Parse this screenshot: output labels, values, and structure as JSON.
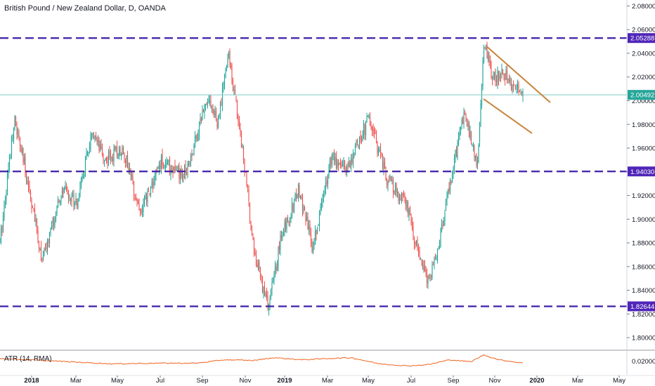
{
  "window": {
    "title": "British Pound / New Zealand Dollar, D, OANDA"
  },
  "colors": {
    "up": "#26a69a",
    "down": "#ef5350",
    "hline": "#3f1fa8",
    "trendline": "#c8843c",
    "price_line": "#80cbc4",
    "atr": "#f0631e",
    "axis_text": "#131722",
    "badge_bg": "#4f25b8",
    "badge_text": "#ffffff",
    "price_badge_bg": "#26a69a"
  },
  "chart_data": [
    {
      "type": "candlestick",
      "title": "British Pound / New Zealand Dollar, D, OANDA",
      "x_tick_labels": [
        "2018",
        "Mar",
        "May",
        "Jul",
        "Sep",
        "Nov",
        "2019",
        "Mar",
        "May",
        "Jul",
        "Sep",
        "Nov",
        "2020",
        "Mar",
        "May"
      ],
      "y_tick_labels": [
        "2.08000",
        "2.06000",
        "2.04000",
        "2.02000",
        "2.00000",
        "1.98000",
        "1.96000",
        "1.94000",
        "1.92000",
        "1.90000",
        "1.88000",
        "1.86000",
        "1.84000",
        "1.82000",
        "1.80000"
      ],
      "ylim": [
        1.79,
        2.085
      ],
      "price_anchors": [
        [
          0,
          1.88
        ],
        [
          20,
          1.985
        ],
        [
          40,
          1.93
        ],
        [
          60,
          1.865
        ],
        [
          90,
          1.925
        ],
        [
          110,
          1.915
        ],
        [
          130,
          1.97
        ],
        [
          150,
          1.95
        ],
        [
          175,
          1.96
        ],
        [
          200,
          1.905
        ],
        [
          230,
          1.95
        ],
        [
          260,
          1.935
        ],
        [
          275,
          1.96
        ],
        [
          295,
          2.005
        ],
        [
          310,
          1.98
        ],
        [
          325,
          2.04
        ],
        [
          345,
          1.96
        ],
        [
          362,
          1.87
        ],
        [
          382,
          1.825
        ],
        [
          400,
          1.885
        ],
        [
          425,
          1.925
        ],
        [
          445,
          1.875
        ],
        [
          470,
          1.95
        ],
        [
          495,
          1.945
        ],
        [
          525,
          1.985
        ],
        [
          550,
          1.935
        ],
        [
          580,
          1.91
        ],
        [
          595,
          1.87
        ],
        [
          610,
          1.845
        ],
        [
          625,
          1.88
        ],
        [
          640,
          1.93
        ],
        [
          660,
          1.99
        ],
        [
          680,
          1.945
        ],
        [
          688,
          2.05
        ],
        [
          700,
          2.02
        ],
        [
          715,
          2.025
        ],
        [
          730,
          2.01
        ],
        [
          745,
          2.005
        ]
      ],
      "horizontal_levels": [
        2.05288,
        1.9403,
        1.82644
      ],
      "level_labels": [
        "2.05288",
        "1.94030",
        "1.82644"
      ],
      "last_price": 2.00492,
      "last_price_label": "2.00492",
      "trendlines": [
        {
          "from": [
            693,
            2.0455
          ],
          "to": [
            783,
            1.9985
          ]
        },
        {
          "from": [
            688,
            2.0015
          ],
          "to": [
            757,
            1.9725
          ]
        }
      ]
    },
    {
      "type": "line",
      "title": "ATR (14, RMA)",
      "y_tick_labels": [
        "0.02000"
      ],
      "ylim": [
        0.0,
        0.035
      ],
      "anchors": [
        [
          0,
          0.024
        ],
        [
          40,
          0.022
        ],
        [
          100,
          0.019
        ],
        [
          160,
          0.016
        ],
        [
          220,
          0.017
        ],
        [
          280,
          0.017
        ],
        [
          320,
          0.022
        ],
        [
          360,
          0.021
        ],
        [
          390,
          0.025
        ],
        [
          430,
          0.022
        ],
        [
          470,
          0.024
        ],
        [
          500,
          0.025
        ],
        [
          540,
          0.016
        ],
        [
          580,
          0.013
        ],
        [
          610,
          0.015
        ],
        [
          640,
          0.022
        ],
        [
          670,
          0.019
        ],
        [
          688,
          0.029
        ],
        [
          710,
          0.022
        ],
        [
          745,
          0.017
        ]
      ]
    }
  ]
}
